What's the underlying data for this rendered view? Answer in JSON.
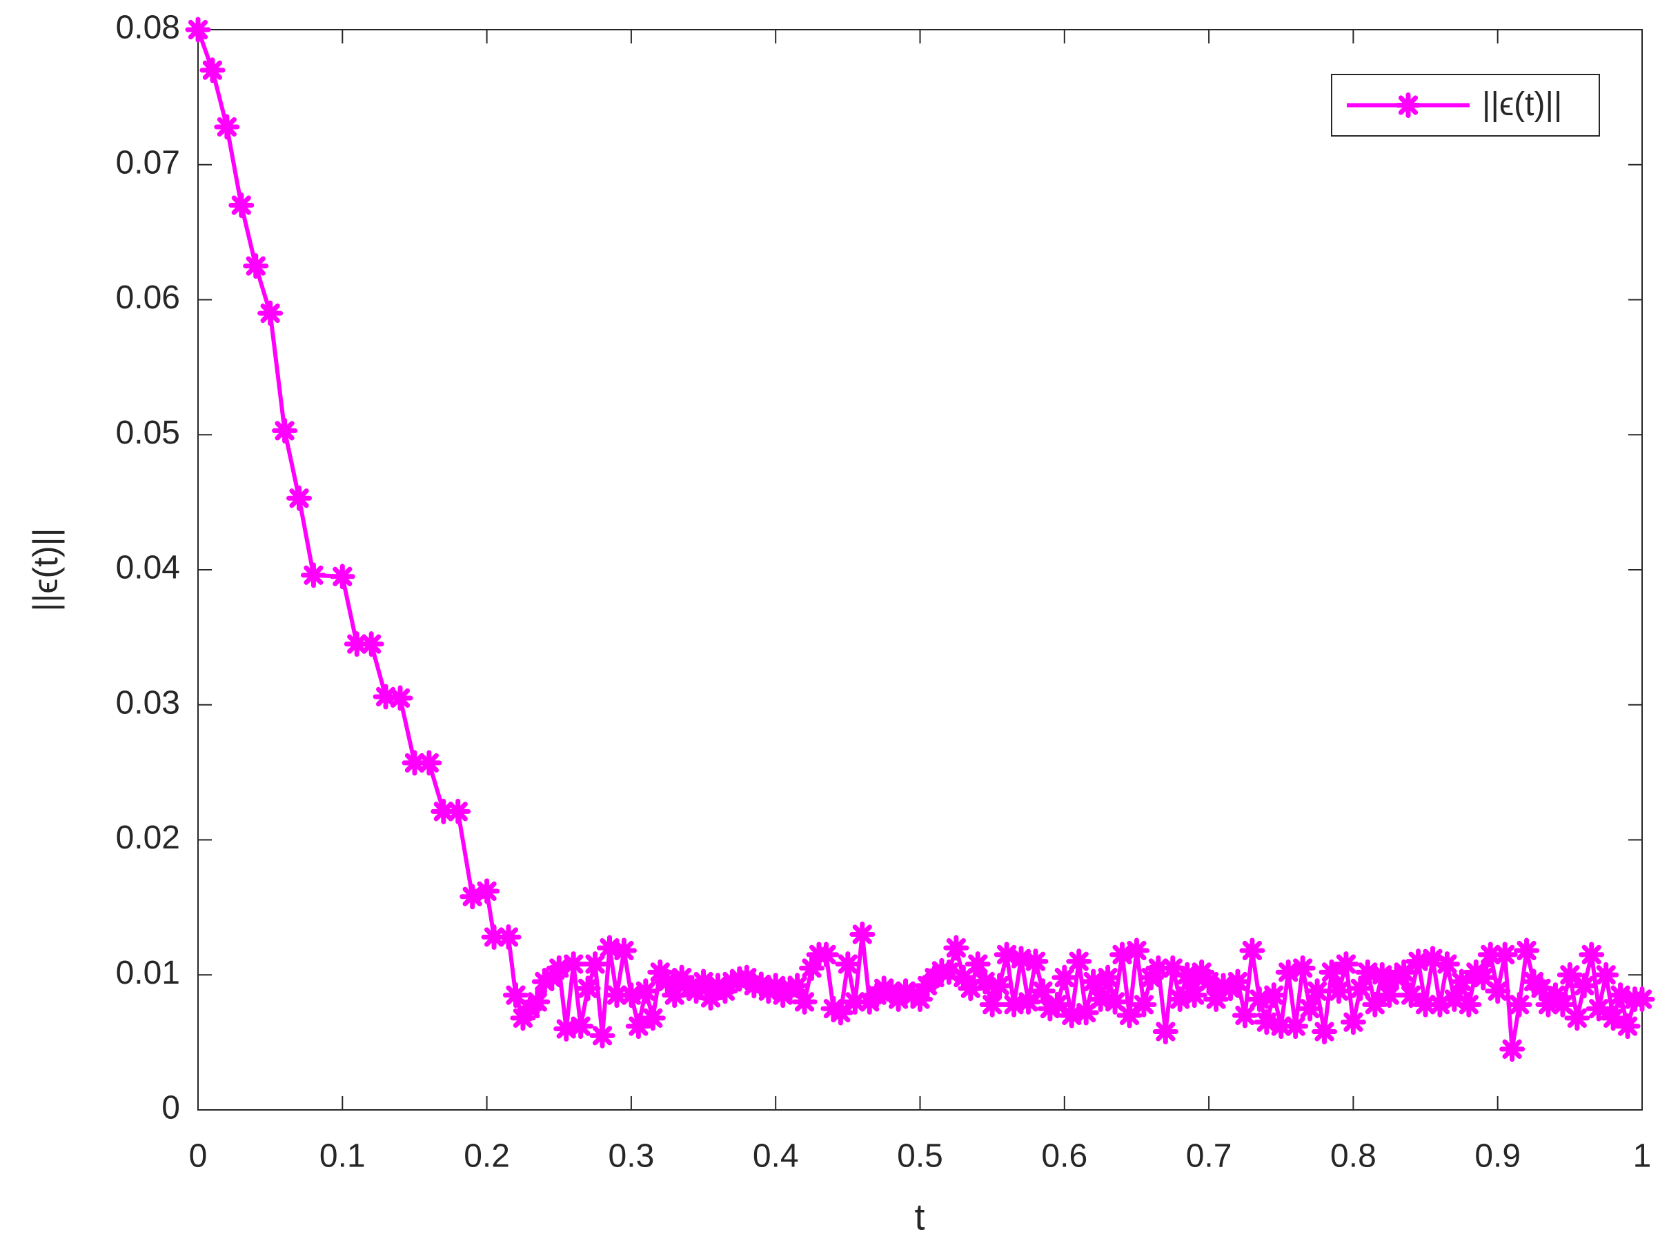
{
  "chart_data": {
    "type": "line",
    "xlabel": "t",
    "ylabel": "||ϵ(t)||",
    "x": [
      0,
      0.01,
      0.02,
      0.03,
      0.04,
      0.05,
      0.06,
      0.07,
      0.08,
      0.1,
      0.11,
      0.12,
      0.13,
      0.14,
      0.15,
      0.16,
      0.17,
      0.18,
      0.19,
      0.2,
      0.205,
      0.215,
      0.22,
      0.225,
      0.23,
      0.235,
      0.24,
      0.245,
      0.25,
      0.255,
      0.26,
      0.265,
      0.27,
      0.275,
      0.28,
      0.285,
      0.29,
      0.295,
      0.3,
      0.305,
      0.31,
      0.315,
      0.32,
      0.325,
      0.33,
      0.335,
      0.34,
      0.345,
      0.35,
      0.355,
      0.36,
      0.365,
      0.37,
      0.375,
      0.38,
      0.385,
      0.39,
      0.395,
      0.4,
      0.405,
      0.41,
      0.415,
      0.42,
      0.425,
      0.43,
      0.435,
      0.44,
      0.445,
      0.45,
      0.455,
      0.46,
      0.465,
      0.47,
      0.475,
      0.48,
      0.485,
      0.49,
      0.495,
      0.5,
      0.505,
      0.51,
      0.515,
      0.52,
      0.525,
      0.53,
      0.535,
      0.54,
      0.545,
      0.55,
      0.555,
      0.56,
      0.565,
      0.57,
      0.575,
      0.58,
      0.585,
      0.59,
      0.595,
      0.6,
      0.605,
      0.61,
      0.615,
      0.62,
      0.625,
      0.63,
      0.635,
      0.64,
      0.645,
      0.65,
      0.655,
      0.66,
      0.665,
      0.67,
      0.675,
      0.68,
      0.685,
      0.69,
      0.695,
      0.7,
      0.705,
      0.71,
      0.715,
      0.72,
      0.725,
      0.73,
      0.735,
      0.74,
      0.745,
      0.75,
      0.755,
      0.76,
      0.765,
      0.77,
      0.775,
      0.78,
      0.785,
      0.79,
      0.795,
      0.8,
      0.805,
      0.81,
      0.815,
      0.82,
      0.825,
      0.83,
      0.835,
      0.84,
      0.845,
      0.85,
      0.855,
      0.86,
      0.865,
      0.87,
      0.875,
      0.88,
      0.885,
      0.89,
      0.895,
      0.9,
      0.905,
      0.91,
      0.915,
      0.92,
      0.925,
      0.93,
      0.935,
      0.94,
      0.945,
      0.95,
      0.955,
      0.96,
      0.965,
      0.97,
      0.975,
      0.98,
      0.985,
      0.99,
      0.995,
      1
    ],
    "series": [
      {
        "name": "||ϵ(t)||",
        "color": "#ff00ff",
        "values": [
          0.08,
          0.077,
          0.0728,
          0.067,
          0.0625,
          0.059,
          0.0503,
          0.0453,
          0.0396,
          0.0395,
          0.0345,
          0.0345,
          0.0306,
          0.0305,
          0.0257,
          0.0257,
          0.0221,
          0.0221,
          0.0158,
          0.0162,
          0.0128,
          0.0128,
          0.0085,
          0.0068,
          0.0075,
          0.008,
          0.0095,
          0.0098,
          0.0105,
          0.006,
          0.0108,
          0.0062,
          0.009,
          0.0108,
          0.0055,
          0.012,
          0.0085,
          0.0118,
          0.0085,
          0.0062,
          0.0088,
          0.0068,
          0.0102,
          0.0095,
          0.0085,
          0.0098,
          0.009,
          0.0088,
          0.0095,
          0.0083,
          0.0092,
          0.0088,
          0.0095,
          0.0097,
          0.0098,
          0.0092,
          0.0093,
          0.0088,
          0.0092,
          0.0085,
          0.009,
          0.0092,
          0.008,
          0.0105,
          0.0115,
          0.0115,
          0.0075,
          0.0072,
          0.0108,
          0.008,
          0.013,
          0.008,
          0.0085,
          0.009,
          0.0088,
          0.0082,
          0.0088,
          0.0085,
          0.0082,
          0.0092,
          0.0098,
          0.0103,
          0.0102,
          0.012,
          0.0098,
          0.009,
          0.0108,
          0.0095,
          0.0078,
          0.0092,
          0.0115,
          0.0078,
          0.0112,
          0.008,
          0.011,
          0.0088,
          0.0075,
          0.0078,
          0.0098,
          0.007,
          0.011,
          0.0072,
          0.0095,
          0.0082,
          0.0098,
          0.008,
          0.0115,
          0.007,
          0.0118,
          0.0078,
          0.0098,
          0.0105,
          0.0058,
          0.0105,
          0.0082,
          0.01,
          0.0085,
          0.0102,
          0.0095,
          0.0082,
          0.0092,
          0.009,
          0.0095,
          0.007,
          0.0118,
          0.0082,
          0.0065,
          0.0085,
          0.0062,
          0.0102,
          0.0062,
          0.0105,
          0.0075,
          0.0088,
          0.0058,
          0.0102,
          0.0088,
          0.0108,
          0.0065,
          0.009,
          0.0102,
          0.0078,
          0.01,
          0.0085,
          0.0098,
          0.0102,
          0.0085,
          0.011,
          0.0078,
          0.0112,
          0.0078,
          0.0108,
          0.0082,
          0.0095,
          0.0078,
          0.0102,
          0.0098,
          0.0115,
          0.0088,
          0.0115,
          0.0045,
          0.0078,
          0.0118,
          0.0095,
          0.009,
          0.0078,
          0.0085,
          0.0078,
          0.01,
          0.0068,
          0.0092,
          0.0115,
          0.0075,
          0.01,
          0.0068,
          0.0085,
          0.0062,
          0.0082,
          0.0082
        ]
      }
    ],
    "xlim": [
      0,
      1
    ],
    "xticks": [
      0,
      0.1,
      0.2,
      0.3,
      0.4,
      0.5,
      0.6,
      0.7,
      0.8,
      0.9,
      1
    ],
    "ylim": [
      0,
      0.08
    ],
    "yticks": [
      0,
      0.01,
      0.02,
      0.03,
      0.04,
      0.05,
      0.06,
      0.07,
      0.08
    ],
    "grid": false,
    "legend": "upper right"
  }
}
